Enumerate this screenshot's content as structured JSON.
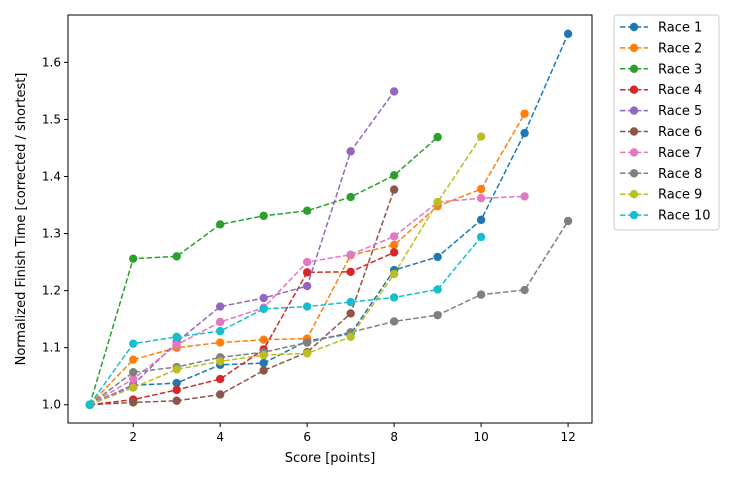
{
  "chart_data": {
    "type": "line",
    "title": "",
    "xlabel": "Score [points]",
    "ylabel": "Normalized Finish Time [corrected / shortest]",
    "xlim": [
      0.5,
      12.55
    ],
    "ylim": [
      0.968,
      1.683
    ],
    "xticks": [
      2,
      4,
      6,
      8,
      10,
      12
    ],
    "yticks": [
      1.0,
      1.1,
      1.2,
      1.3,
      1.4,
      1.5,
      1.6
    ],
    "grid": false,
    "legend_position": "outside-right-top",
    "line_style": "dashed",
    "marker": "circle",
    "series": [
      {
        "name": "Race 1",
        "color": "#1f77b4",
        "x": [
          1,
          2,
          3,
          4,
          5,
          6,
          7,
          8,
          9,
          10,
          11,
          12
        ],
        "y": [
          1.0,
          1.034,
          1.038,
          1.07,
          1.073,
          1.112,
          1.124,
          1.236,
          1.259,
          1.324,
          1.476,
          1.65
        ]
      },
      {
        "name": "Race 2",
        "color": "#ff7f0e",
        "x": [
          1,
          2,
          3,
          4,
          5,
          6,
          7,
          8,
          9,
          10,
          11
        ],
        "y": [
          1.0,
          1.079,
          1.1,
          1.109,
          1.114,
          1.116,
          1.262,
          1.28,
          1.348,
          1.378,
          1.51
        ]
      },
      {
        "name": "Race 3",
        "color": "#2ca02c",
        "x": [
          1,
          2,
          3,
          4,
          5,
          6,
          7,
          8,
          9
        ],
        "y": [
          1.0,
          1.256,
          1.26,
          1.316,
          1.331,
          1.34,
          1.364,
          1.402,
          1.469
        ]
      },
      {
        "name": "Race 4",
        "color": "#d62728",
        "x": [
          1,
          2,
          3,
          4,
          5,
          6,
          7,
          8
        ],
        "y": [
          1.0,
          1.009,
          1.026,
          1.045,
          1.097,
          1.232,
          1.233,
          1.267
        ]
      },
      {
        "name": "Race 5",
        "color": "#9467bd",
        "x": [
          1,
          2,
          3,
          4,
          5,
          6,
          7,
          8
        ],
        "y": [
          1.0,
          1.035,
          1.11,
          1.172,
          1.187,
          1.208,
          1.444,
          1.549
        ]
      },
      {
        "name": "Race 6",
        "color": "#8c564b",
        "x": [
          1,
          2,
          3,
          4,
          5,
          6,
          7,
          8
        ],
        "y": [
          1.0,
          1.004,
          1.007,
          1.018,
          1.06,
          1.092,
          1.16,
          1.377
        ]
      },
      {
        "name": "Race 7",
        "color": "#e377c2",
        "x": [
          1,
          2,
          3,
          4,
          5,
          6,
          7,
          8,
          9,
          10,
          11
        ],
        "y": [
          1.0,
          1.045,
          1.105,
          1.145,
          1.17,
          1.25,
          1.263,
          1.295,
          1.355,
          1.362,
          1.365
        ]
      },
      {
        "name": "Race 8",
        "color": "#7f7f7f",
        "x": [
          1,
          2,
          3,
          4,
          5,
          6,
          7,
          8,
          9,
          10,
          11,
          12
        ],
        "y": [
          1.0,
          1.057,
          1.066,
          1.083,
          1.092,
          1.109,
          1.127,
          1.146,
          1.157,
          1.193,
          1.201,
          1.322
        ]
      },
      {
        "name": "Race 9",
        "color": "#bcbd22",
        "x": [
          1,
          2,
          3,
          4,
          5,
          6,
          7,
          8,
          9,
          10
        ],
        "y": [
          1.0,
          1.03,
          1.062,
          1.076,
          1.087,
          1.09,
          1.119,
          1.229,
          1.355,
          1.47
        ]
      },
      {
        "name": "Race 10",
        "color": "#17becf",
        "x": [
          1,
          2,
          3,
          4,
          5,
          6,
          7,
          8,
          9,
          10
        ],
        "y": [
          1.0,
          1.107,
          1.119,
          1.129,
          1.168,
          1.172,
          1.18,
          1.188,
          1.202,
          1.294
        ]
      }
    ]
  }
}
